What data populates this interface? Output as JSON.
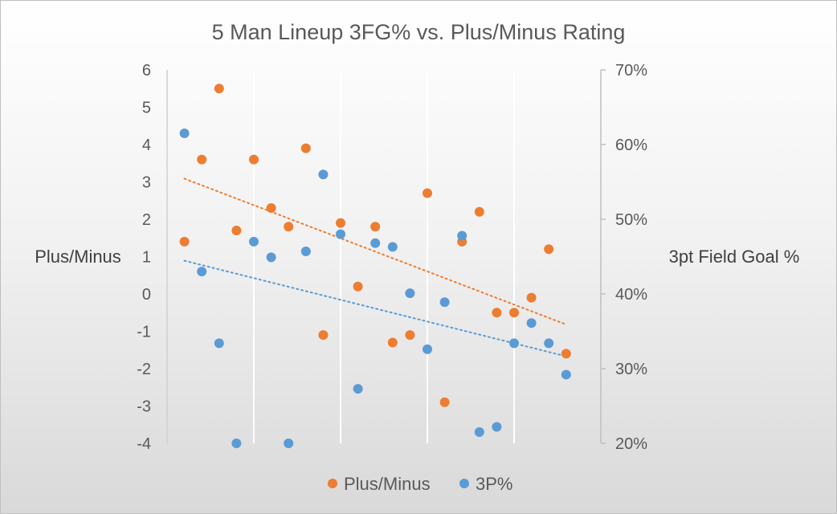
{
  "chart_data": {
    "type": "scatter",
    "title": "5 Man Lineup 3FG% vs. Plus/Minus Rating",
    "ylabel": "Plus/Minus",
    "y2label": "3pt Field Goal %",
    "ylim": [
      -4,
      6
    ],
    "y2lim": [
      0.2,
      0.7
    ],
    "y_ticks": [
      "6",
      "5",
      "4",
      "3",
      "2",
      "1",
      "0",
      "-1",
      "-2",
      "-3",
      "-4"
    ],
    "y2_ticks": [
      "70%",
      "60%",
      "50%",
      "40%",
      "30%",
      "20%"
    ],
    "grid": true,
    "legend_position": "bottom",
    "series": [
      {
        "name": "Plus/Minus",
        "axis": "left",
        "color": "#ed7d31",
        "trendline": true,
        "x": [
          1,
          2,
          3,
          4,
          5,
          6,
          7,
          8,
          9,
          10,
          11,
          12,
          13,
          14,
          15,
          16,
          17,
          18,
          19,
          20,
          21,
          22,
          23
        ],
        "y": [
          1.4,
          3.6,
          5.5,
          1.7,
          3.6,
          2.3,
          1.8,
          3.9,
          -1.1,
          1.9,
          0.2,
          1.8,
          -1.3,
          -1.1,
          2.7,
          -2.9,
          1.4,
          2.2,
          -0.5,
          -0.5,
          -0.1,
          1.2,
          -1.6
        ]
      },
      {
        "name": "3P%",
        "axis": "right",
        "color": "#5b9bd5",
        "trendline": true,
        "x": [
          1,
          2,
          3,
          4,
          5,
          6,
          7,
          8,
          9,
          10,
          11,
          12,
          13,
          14,
          15,
          16,
          17,
          18,
          19,
          20,
          21,
          22,
          23
        ],
        "y": [
          0.615,
          0.43,
          0.334,
          0.2,
          0.47,
          0.449,
          0.2,
          0.457,
          0.56,
          0.48,
          0.273,
          0.468,
          0.463,
          0.401,
          0.326,
          0.389,
          0.478,
          0.215,
          0.222,
          0.334,
          0.361,
          0.334,
          0.292
        ]
      }
    ]
  }
}
